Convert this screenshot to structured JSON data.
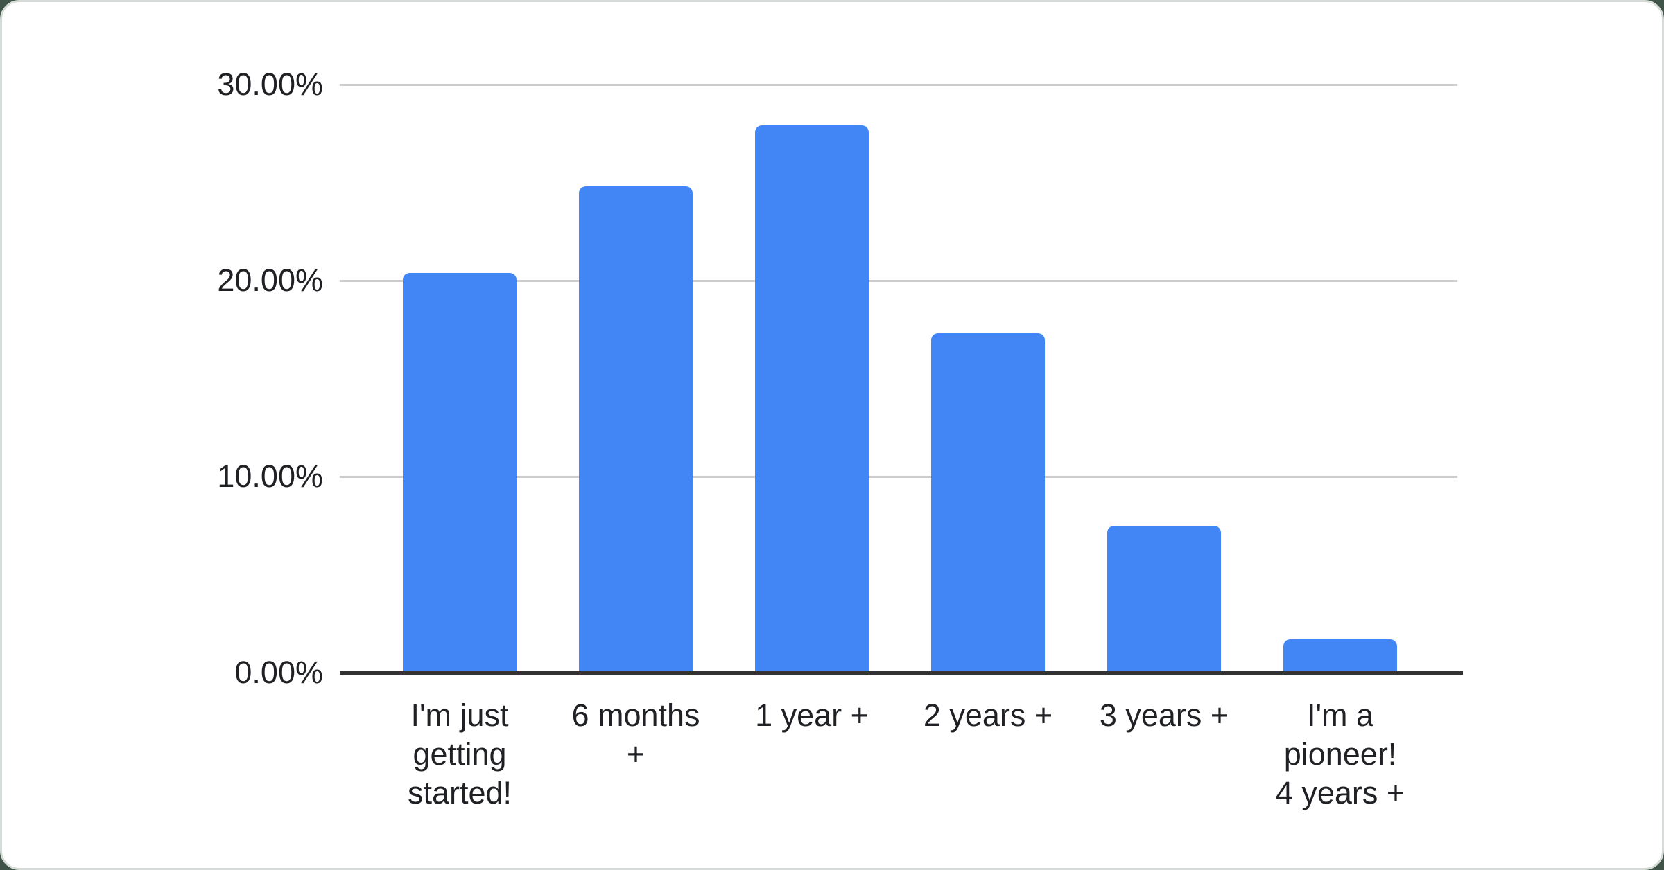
{
  "page": {
    "background_color": "#415449",
    "card_color": "#ffffff",
    "card_border_color": "#d5dbd6"
  },
  "chart_data": {
    "type": "bar",
    "title": "",
    "legend": "none",
    "grid": true,
    "unit": "%",
    "ylim": [
      0,
      30
    ],
    "categories": [
      "I'm just getting started!",
      "6 months +",
      "1 year +",
      "2 years +",
      "3 years +",
      "I'm a pioneer! 4 years +"
    ],
    "category_label_lines": [
      [
        "I'm just",
        "getting",
        "started!"
      ],
      [
        "6 months",
        "+"
      ],
      [
        "1 year +"
      ],
      [
        "2 years +"
      ],
      [
        "3 years +"
      ],
      [
        "I'm a",
        "pioneer!",
        "4 years +"
      ]
    ],
    "values": [
      20.4,
      24.8,
      27.9,
      17.3,
      7.5,
      1.7
    ],
    "y_ticks": [
      {
        "value": 0,
        "label": "0.00%"
      },
      {
        "value": 10,
        "label": "10.00%"
      },
      {
        "value": 20,
        "label": "20.00%"
      },
      {
        "value": 30,
        "label": "30.00%"
      }
    ],
    "bar_color": "#4285f4",
    "gridline_color": "#cccccc",
    "axis_line_color": "#333333",
    "text_color": "#202124"
  }
}
